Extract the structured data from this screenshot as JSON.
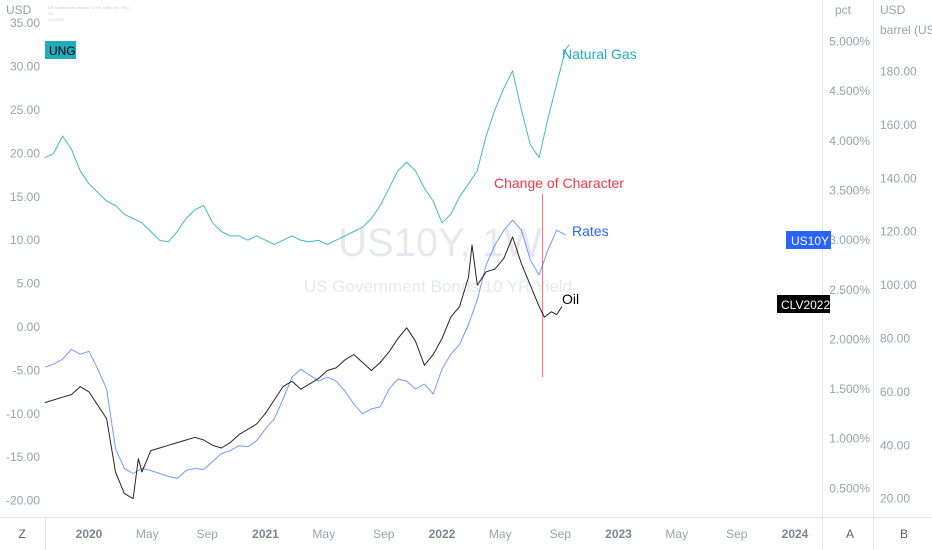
{
  "header": {
    "left_unit": "USD",
    "mid_unit": "pct",
    "right_unit_line1": "USD",
    "right_unit_line2": "barrel (US)",
    "tiny_lines": [
      "US Government Bonds 10 YR Yield, 1W, TVC",
      "Vol",
      "CLV2022"
    ]
  },
  "corner_buttons": {
    "left": "Z",
    "mid": "A",
    "right": "B"
  },
  "watermark": {
    "symbol": "US10Y, 1W",
    "name": "US Government Bonds 10 YR Yield"
  },
  "badges": {
    "ung": {
      "label": "UNG",
      "color": "#22abba"
    },
    "us10y": {
      "label": "US10Y",
      "color": "#2962ff"
    },
    "clv": {
      "label": "CLV2022",
      "color": "#000000"
    }
  },
  "annotations": {
    "natural_gas": {
      "label": "Natural Gas",
      "color": "#22abba"
    },
    "change_of_character": {
      "label": "Change of Character",
      "color": "#f23645"
    },
    "rates": {
      "label": "Rates",
      "color": "#2962ff"
    },
    "oil": {
      "label": "Oil",
      "color": "#000000"
    }
  },
  "chart_data": {
    "type": "line",
    "left_axis": {
      "unit": "USD",
      "ticks": [
        "35.00",
        "30.00",
        "25.00",
        "20.00",
        "15.00",
        "10.00",
        "5.00",
        "0.00",
        "-5.00",
        "-10.00",
        "-15.00",
        "-20.00"
      ],
      "tick_values": [
        35,
        30,
        25,
        20,
        15,
        10,
        5,
        0,
        -5,
        -10,
        -15,
        -20
      ]
    },
    "pct_axis": {
      "unit": "pct",
      "ticks": [
        "5.000%",
        "4.500%",
        "4.000%",
        "3.500%",
        "3.000%",
        "2.500%",
        "2.000%",
        "1.500%",
        "1.000%",
        "0.500%"
      ],
      "tick_values": [
        5.0,
        4.5,
        4.0,
        3.5,
        3.0,
        2.5,
        2.0,
        1.5,
        1.0,
        0.5
      ]
    },
    "oil_axis": {
      "unit": "USD barrel (US)",
      "ticks": [
        "180.00",
        "160.00",
        "140.00",
        "120.00",
        "100.00",
        "80.00",
        "60.00",
        "40.00",
        "20.00"
      ],
      "tick_values": [
        180,
        160,
        140,
        120,
        100,
        80,
        60,
        40,
        20
      ]
    },
    "x_ticks": [
      {
        "label": "2020",
        "t": 2020.0,
        "bold": true
      },
      {
        "label": "May",
        "t": 2020.33,
        "bold": false
      },
      {
        "label": "Sep",
        "t": 2020.67,
        "bold": false
      },
      {
        "label": "2021",
        "t": 2021.0,
        "bold": true
      },
      {
        "label": "May",
        "t": 2021.33,
        "bold": false
      },
      {
        "label": "Sep",
        "t": 2021.67,
        "bold": false
      },
      {
        "label": "2022",
        "t": 2022.0,
        "bold": true
      },
      {
        "label": "May",
        "t": 2022.33,
        "bold": false
      },
      {
        "label": "Sep",
        "t": 2022.67,
        "bold": false
      },
      {
        "label": "2023",
        "t": 2023.0,
        "bold": true
      },
      {
        "label": "May",
        "t": 2023.33,
        "bold": false
      },
      {
        "label": "Sep",
        "t": 2023.67,
        "bold": false
      },
      {
        "label": "2024",
        "t": 2024.0,
        "bold": true
      }
    ],
    "series": [
      {
        "name": "Natural Gas",
        "axis": "left",
        "color": "#22abba",
        "points": [
          [
            2019.75,
            19.5
          ],
          [
            2019.8,
            20.0
          ],
          [
            2019.85,
            22.0
          ],
          [
            2019.9,
            20.5
          ],
          [
            2019.95,
            18.0
          ],
          [
            2020.0,
            16.5
          ],
          [
            2020.05,
            15.5
          ],
          [
            2020.1,
            14.5
          ],
          [
            2020.15,
            14.0
          ],
          [
            2020.2,
            13.0
          ],
          [
            2020.25,
            12.5
          ],
          [
            2020.3,
            12.0
          ],
          [
            2020.35,
            11.0
          ],
          [
            2020.4,
            10.0
          ],
          [
            2020.45,
            9.8
          ],
          [
            2020.5,
            11.0
          ],
          [
            2020.55,
            12.5
          ],
          [
            2020.6,
            13.5
          ],
          [
            2020.65,
            14.0
          ],
          [
            2020.7,
            12.0
          ],
          [
            2020.75,
            11.0
          ],
          [
            2020.8,
            10.5
          ],
          [
            2020.85,
            10.5
          ],
          [
            2020.9,
            10.0
          ],
          [
            2020.95,
            10.5
          ],
          [
            2021.0,
            10.0
          ],
          [
            2021.05,
            9.5
          ],
          [
            2021.1,
            10.0
          ],
          [
            2021.15,
            10.5
          ],
          [
            2021.2,
            10.0
          ],
          [
            2021.25,
            9.8
          ],
          [
            2021.3,
            10.0
          ],
          [
            2021.35,
            9.5
          ],
          [
            2021.4,
            10.0
          ],
          [
            2021.45,
            10.5
          ],
          [
            2021.5,
            11.0
          ],
          [
            2021.55,
            11.5
          ],
          [
            2021.6,
            12.5
          ],
          [
            2021.65,
            14.0
          ],
          [
            2021.7,
            16.0
          ],
          [
            2021.75,
            18.0
          ],
          [
            2021.8,
            19.0
          ],
          [
            2021.85,
            18.0
          ],
          [
            2021.9,
            16.0
          ],
          [
            2021.95,
            14.5
          ],
          [
            2022.0,
            12.0
          ],
          [
            2022.05,
            13.0
          ],
          [
            2022.1,
            15.0
          ],
          [
            2022.15,
            16.5
          ],
          [
            2022.2,
            18.0
          ],
          [
            2022.25,
            22.0
          ],
          [
            2022.3,
            25.0
          ],
          [
            2022.35,
            27.5
          ],
          [
            2022.4,
            29.5
          ],
          [
            2022.45,
            25.0
          ],
          [
            2022.5,
            21.0
          ],
          [
            2022.55,
            19.5
          ],
          [
            2022.6,
            24.0
          ],
          [
            2022.65,
            28.0
          ],
          [
            2022.7,
            32.0
          ],
          [
            2022.72,
            32.5
          ]
        ]
      },
      {
        "name": "Rates",
        "axis": "pct",
        "color": "#2962ff",
        "points": [
          [
            2019.75,
            1.72
          ],
          [
            2019.8,
            1.75
          ],
          [
            2019.85,
            1.8
          ],
          [
            2019.9,
            1.9
          ],
          [
            2019.95,
            1.85
          ],
          [
            2020.0,
            1.88
          ],
          [
            2020.05,
            1.7
          ],
          [
            2020.1,
            1.5
          ],
          [
            2020.15,
            0.9
          ],
          [
            2020.2,
            0.7
          ],
          [
            2020.25,
            0.65
          ],
          [
            2020.3,
            0.7
          ],
          [
            2020.35,
            0.68
          ],
          [
            2020.4,
            0.65
          ],
          [
            2020.45,
            0.62
          ],
          [
            2020.5,
            0.6
          ],
          [
            2020.55,
            0.68
          ],
          [
            2020.6,
            0.7
          ],
          [
            2020.65,
            0.69
          ],
          [
            2020.7,
            0.77
          ],
          [
            2020.75,
            0.85
          ],
          [
            2020.8,
            0.88
          ],
          [
            2020.85,
            0.93
          ],
          [
            2020.9,
            0.92
          ],
          [
            2020.95,
            0.98
          ],
          [
            2021.0,
            1.1
          ],
          [
            2021.05,
            1.2
          ],
          [
            2021.1,
            1.4
          ],
          [
            2021.15,
            1.62
          ],
          [
            2021.2,
            1.7
          ],
          [
            2021.25,
            1.64
          ],
          [
            2021.3,
            1.58
          ],
          [
            2021.35,
            1.62
          ],
          [
            2021.4,
            1.58
          ],
          [
            2021.45,
            1.48
          ],
          [
            2021.5,
            1.35
          ],
          [
            2021.55,
            1.25
          ],
          [
            2021.6,
            1.3
          ],
          [
            2021.65,
            1.32
          ],
          [
            2021.7,
            1.5
          ],
          [
            2021.75,
            1.6
          ],
          [
            2021.8,
            1.58
          ],
          [
            2021.85,
            1.5
          ],
          [
            2021.9,
            1.55
          ],
          [
            2021.95,
            1.45
          ],
          [
            2022.0,
            1.7
          ],
          [
            2022.05,
            1.85
          ],
          [
            2022.1,
            1.95
          ],
          [
            2022.15,
            2.15
          ],
          [
            2022.2,
            2.4
          ],
          [
            2022.25,
            2.75
          ],
          [
            2022.3,
            2.95
          ],
          [
            2022.35,
            3.1
          ],
          [
            2022.4,
            3.2
          ],
          [
            2022.45,
            3.1
          ],
          [
            2022.5,
            2.8
          ],
          [
            2022.55,
            2.65
          ],
          [
            2022.6,
            2.9
          ],
          [
            2022.65,
            3.1
          ],
          [
            2022.7,
            3.05
          ]
        ]
      },
      {
        "name": "Oil",
        "axis": "oil",
        "color": "#000000",
        "points": [
          [
            2019.75,
            56
          ],
          [
            2019.8,
            57
          ],
          [
            2019.85,
            58
          ],
          [
            2019.9,
            59
          ],
          [
            2019.95,
            62
          ],
          [
            2020.0,
            60
          ],
          [
            2020.05,
            55
          ],
          [
            2020.1,
            50
          ],
          [
            2020.15,
            30
          ],
          [
            2020.2,
            22
          ],
          [
            2020.25,
            20
          ],
          [
            2020.28,
            35
          ],
          [
            2020.3,
            30
          ],
          [
            2020.35,
            38
          ],
          [
            2020.4,
            39
          ],
          [
            2020.45,
            40
          ],
          [
            2020.5,
            41
          ],
          [
            2020.55,
            42
          ],
          [
            2020.6,
            43
          ],
          [
            2020.65,
            42
          ],
          [
            2020.7,
            40
          ],
          [
            2020.75,
            39
          ],
          [
            2020.8,
            41
          ],
          [
            2020.85,
            44
          ],
          [
            2020.9,
            46
          ],
          [
            2020.95,
            48
          ],
          [
            2021.0,
            52
          ],
          [
            2021.05,
            57
          ],
          [
            2021.1,
            62
          ],
          [
            2021.15,
            64
          ],
          [
            2021.2,
            61
          ],
          [
            2021.25,
            63
          ],
          [
            2021.3,
            65
          ],
          [
            2021.35,
            68
          ],
          [
            2021.4,
            69
          ],
          [
            2021.45,
            72
          ],
          [
            2021.5,
            74
          ],
          [
            2021.55,
            71
          ],
          [
            2021.6,
            68
          ],
          [
            2021.65,
            71
          ],
          [
            2021.7,
            75
          ],
          [
            2021.75,
            80
          ],
          [
            2021.8,
            84
          ],
          [
            2021.85,
            79
          ],
          [
            2021.9,
            70
          ],
          [
            2021.95,
            74
          ],
          [
            2022.0,
            80
          ],
          [
            2022.05,
            88
          ],
          [
            2022.1,
            92
          ],
          [
            2022.15,
            103
          ],
          [
            2022.17,
            115
          ],
          [
            2022.2,
            100
          ],
          [
            2022.25,
            105
          ],
          [
            2022.3,
            106
          ],
          [
            2022.35,
            110
          ],
          [
            2022.4,
            118
          ],
          [
            2022.45,
            108
          ],
          [
            2022.5,
            100
          ],
          [
            2022.55,
            92
          ],
          [
            2022.58,
            88
          ],
          [
            2022.62,
            90
          ],
          [
            2022.65,
            89
          ],
          [
            2022.68,
            92
          ]
        ]
      }
    ],
    "events": [
      {
        "label": "Change of Character",
        "t": 2022.57
      }
    ]
  }
}
